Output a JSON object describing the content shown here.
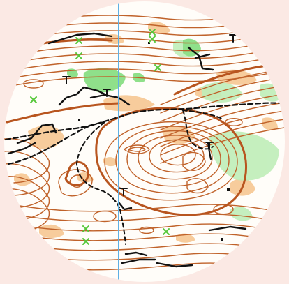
{
  "map": {
    "kind": "orienteering-map-excerpt",
    "shape": "circle",
    "colors": {
      "page_background": "#fbe9e4",
      "paper": "#fffdf9",
      "contour": "#c0622a",
      "index_contour": "#b8551f",
      "rough_open_land": "#f6c48c",
      "green_vegetation": "#8fe08a",
      "light_green": "#bfeeb8",
      "tracks_paths": "#000000",
      "green_marker": "#57c83c",
      "magnetic_north_line": "#5fb0e4"
    },
    "symbols": {
      "green_x_markers": 9,
      "tree_markers_T": 6,
      "north_line": "magnetic-north-line"
    }
  }
}
